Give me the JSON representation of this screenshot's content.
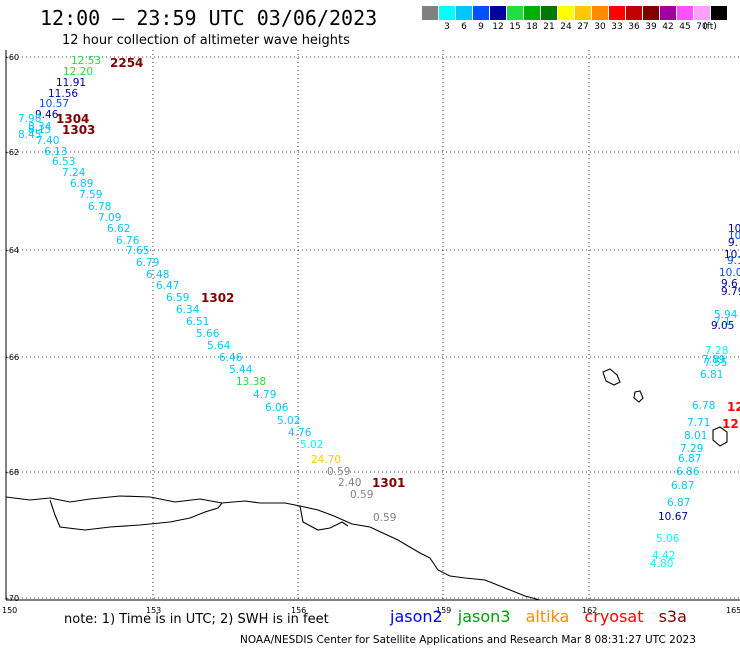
{
  "title": "12:00 – 23:59 UTC 03/06/2023",
  "subtitle": "12 hour collection of altimeter wave heights",
  "colorbar": {
    "unit_label": "(ft)",
    "entries": [
      {
        "label": "",
        "color": "#808080"
      },
      {
        "label": "3",
        "color": "#00ffff"
      },
      {
        "label": "6",
        "color": "#00c8ff"
      },
      {
        "label": "9",
        "color": "#0050ff"
      },
      {
        "label": "12",
        "color": "#0000a0"
      },
      {
        "label": "15",
        "color": "#20e040"
      },
      {
        "label": "18",
        "color": "#00b000"
      },
      {
        "label": "21",
        "color": "#007800"
      },
      {
        "label": "24",
        "color": "#ffff00"
      },
      {
        "label": "27",
        "color": "#ffc800"
      },
      {
        "label": "30",
        "color": "#ff8c00"
      },
      {
        "label": "33",
        "color": "#ff0000"
      },
      {
        "label": "36",
        "color": "#c00000"
      },
      {
        "label": "39",
        "color": "#800000"
      },
      {
        "label": "42",
        "color": "#a000a0"
      },
      {
        "label": "45",
        "color": "#ff50ff"
      },
      {
        "label": "70",
        "color": "#ffa0ff"
      },
      {
        "label": "",
        "color": "#000000"
      }
    ]
  },
  "map": {
    "lat_ticks": [
      "-60",
      "-62",
      "-64",
      "-66",
      "-68",
      "-70"
    ],
    "lon_ticks": [
      "150",
      "153",
      "156",
      "159",
      "162",
      "165"
    ]
  },
  "observations": [
    {
      "text": "12.53",
      "color": "#20e040"
    },
    {
      "text": "12.20",
      "color": "#20e040"
    },
    {
      "text": "11.91",
      "color": "#0000a0"
    },
    {
      "text": "11.56",
      "color": "#0000a0"
    },
    {
      "text": "10.57",
      "color": "#0050ff"
    },
    {
      "text": "9.46",
      "color": "#0000a0"
    },
    {
      "text": "7.98",
      "color": "#00c8ff"
    },
    {
      "text": "8.34",
      "color": "#00c8ff"
    },
    {
      "text": "8.15",
      "color": "#00c8ff"
    },
    {
      "text": "8.45",
      "color": "#00c8ff"
    },
    {
      "text": "7.40",
      "color": "#00c8ff"
    },
    {
      "text": "6.13",
      "color": "#00c8ff"
    },
    {
      "text": "6.53",
      "color": "#00c8ff"
    },
    {
      "text": "7.24",
      "color": "#00c8ff"
    },
    {
      "text": "6.89",
      "color": "#00c8ff"
    },
    {
      "text": "7.59",
      "color": "#00c8ff"
    },
    {
      "text": "6.78",
      "color": "#00c8ff"
    },
    {
      "text": "7.09",
      "color": "#00c8ff"
    },
    {
      "text": "6.62",
      "color": "#00c8ff"
    },
    {
      "text": "6.76",
      "color": "#00c8ff"
    },
    {
      "text": "7.65",
      "color": "#00c8ff"
    },
    {
      "text": "6.79",
      "color": "#00c8ff"
    },
    {
      "text": "6.48",
      "color": "#00c8ff"
    },
    {
      "text": "6.47",
      "color": "#00c8ff"
    },
    {
      "text": "6.59",
      "color": "#00c8ff"
    },
    {
      "text": "6.34",
      "color": "#00c8ff"
    },
    {
      "text": "6.51",
      "color": "#00c8ff"
    },
    {
      "text": "5.66",
      "color": "#00c8ff"
    },
    {
      "text": "5.64",
      "color": "#00c8ff"
    },
    {
      "text": "6.46",
      "color": "#00c8ff"
    },
    {
      "text": "5.44",
      "color": "#00c8ff"
    },
    {
      "text": "13.38",
      "color": "#20e040"
    },
    {
      "text": "4.79",
      "color": "#00c8ff"
    },
    {
      "text": "6.06",
      "color": "#00c8ff"
    },
    {
      "text": "5.02",
      "color": "#00c8ff"
    },
    {
      "text": "4.76",
      "color": "#00c8ff"
    },
    {
      "text": "5.02",
      "color": "#00ffff"
    },
    {
      "text": "24.70",
      "color": "#ffc800"
    },
    {
      "text": "0.59",
      "color": "#808080"
    },
    {
      "text": "2.40",
      "color": "#808080"
    },
    {
      "text": "0.59",
      "color": "#808080"
    },
    {
      "text": "0.59",
      "color": "#808080"
    },
    {
      "text": "10.",
      "color": "#0000a0"
    },
    {
      "text": "10.",
      "color": "#0050ff"
    },
    {
      "text": "9.",
      "color": "#0000a0"
    },
    {
      "text": "10.",
      "color": "#0000a0"
    },
    {
      "text": "9.1",
      "color": "#0050ff"
    },
    {
      "text": "10.0",
      "color": "#0050ff"
    },
    {
      "text": "9.6",
      "color": "#0000a0"
    },
    {
      "text": "9.79",
      "color": "#0000a0"
    },
    {
      "text": "5.94",
      "color": "#00c8ff"
    },
    {
      "text": "7.1",
      "color": "#00c8ff"
    },
    {
      "text": "9.05",
      "color": "#0000a0"
    },
    {
      "text": "7.28",
      "color": "#00ffff"
    },
    {
      "text": "7.89",
      "color": "#00c8ff"
    },
    {
      "text": "7.55",
      "color": "#00c8ff"
    },
    {
      "text": "6.81",
      "color": "#00c8ff"
    },
    {
      "text": "6.78",
      "color": "#00c8ff"
    },
    {
      "text": "7.71",
      "color": "#00c8ff"
    },
    {
      "text": "8.01",
      "color": "#00c8ff"
    },
    {
      "text": "7.29",
      "color": "#00c8ff"
    },
    {
      "text": "6.87",
      "color": "#00c8ff"
    },
    {
      "text": "6.86",
      "color": "#00c8ff"
    },
    {
      "text": "6.87",
      "color": "#00c8ff"
    },
    {
      "text": "6.87",
      "color": "#00c8ff"
    },
    {
      "text": "10.67",
      "color": "#0000a0"
    },
    {
      "text": "5.06",
      "color": "#00ffff"
    },
    {
      "text": "4.42",
      "color": "#00ffff"
    },
    {
      "text": "4.80",
      "color": "#00ffff"
    }
  ],
  "time_tags": [
    {
      "text": "2254",
      "color": "#800000"
    },
    {
      "text": "1304",
      "color": "#800000"
    },
    {
      "text": "1303",
      "color": "#800000"
    },
    {
      "text": "1302",
      "color": "#800000"
    },
    {
      "text": "1301",
      "color": "#800000"
    },
    {
      "text": "12",
      "color": "#ff0000"
    },
    {
      "text": "12",
      "color": "#ff0000"
    }
  ],
  "note": "note:  1) Time is in UTC;  2) SWH is in feet",
  "legend": [
    {
      "name": "jason2",
      "color": "#0000ff"
    },
    {
      "name": "jason3",
      "color": "#00a000"
    },
    {
      "name": "altika",
      "color": "#ff8c00"
    },
    {
      "name": "cryosat",
      "color": "#ff0000"
    },
    {
      "name": "s3a",
      "color": "#800000"
    }
  ],
  "credit": "NOAA/NESDIS Center for Satellite Applications and Research      Mar  8 08:31:27 UTC 2023"
}
